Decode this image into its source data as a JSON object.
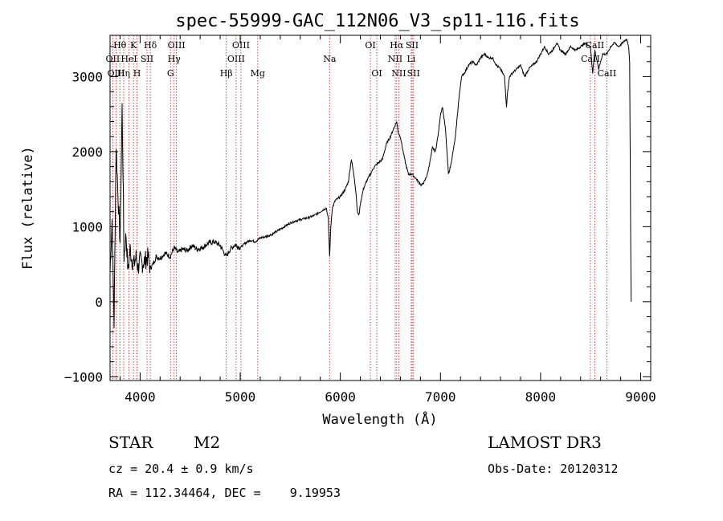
{
  "chart_data": {
    "type": "line",
    "title": "spec-55999-GAC_112N06_V3_sp11-116.fits",
    "xlabel": "Wavelength (Å)",
    "ylabel": "Flux (relative)",
    "xlim": [
      3700,
      9100
    ],
    "ylim": [
      -1050,
      3550
    ],
    "xticks": [
      4000,
      5000,
      6000,
      7000,
      8000,
      9000
    ],
    "yticks": [
      -1000,
      0,
      1000,
      2000,
      3000
    ],
    "series": [
      {
        "name": "spectrum",
        "x": [
          3700,
          3720,
          3740,
          3760,
          3780,
          3800,
          3820,
          3840,
          3860,
          3880,
          3900,
          3920,
          3940,
          3960,
          3980,
          4000,
          4020,
          4050,
          4080,
          4100,
          4130,
          4160,
          4200,
          4250,
          4300,
          4340,
          4380,
          4420,
          4470,
          4520,
          4570,
          4620,
          4680,
          4740,
          4800,
          4861,
          4900,
          4950,
          5000,
          5050,
          5100,
          5150,
          5200,
          5260,
          5320,
          5380,
          5440,
          5500,
          5560,
          5620,
          5680,
          5740,
          5800,
          5860,
          5880,
          5893,
          5905,
          5920,
          5950,
          6000,
          6050,
          6080,
          6110,
          6140,
          6160,
          6170,
          6185,
          6200,
          6230,
          6260,
          6300,
          6340,
          6380,
          6420,
          6460,
          6500,
          6530,
          6563,
          6580,
          6600,
          6620,
          6650,
          6680,
          6717,
          6750,
          6780,
          6810,
          6840,
          6870,
          6900,
          6920,
          6950,
          6980,
          7000,
          7020,
          7050,
          7080,
          7100,
          7120,
          7150,
          7180,
          7210,
          7240,
          7280,
          7320,
          7360,
          7400,
          7440,
          7480,
          7520,
          7560,
          7600,
          7640,
          7660,
          7670,
          7690,
          7720,
          7760,
          7800,
          7840,
          7880,
          7920,
          7960,
          8000,
          8040,
          8080,
          8120,
          8160,
          8200,
          8250,
          8300,
          8350,
          8400,
          8450,
          8498,
          8520,
          8542,
          8580,
          8620,
          8662,
          8700,
          8740,
          8780,
          8820,
          8860,
          8880,
          8890,
          8900,
          8905
        ],
        "values": [
          400,
          1100,
          -300,
          2100,
          1400,
          800,
          2600,
          600,
          900,
          400,
          700,
          550,
          500,
          600,
          450,
          550,
          500,
          550,
          600,
          450,
          500,
          600,
          580,
          650,
          600,
          720,
          650,
          700,
          680,
          750,
          700,
          720,
          780,
          800,
          750,
          600,
          700,
          760,
          720,
          780,
          820,
          800,
          850,
          870,
          900,
          950,
          1000,
          1050,
          1080,
          1100,
          1120,
          1150,
          1200,
          1250,
          1100,
          600,
          1000,
          1250,
          1350,
          1400,
          1500,
          1600,
          1900,
          1650,
          1400,
          1200,
          1150,
          1300,
          1500,
          1600,
          1700,
          1800,
          1850,
          1900,
          2100,
          2200,
          2300,
          2400,
          2250,
          2200,
          2050,
          1850,
          1700,
          1700,
          1650,
          1600,
          1550,
          1600,
          1700,
          1900,
          2050,
          2000,
          2250,
          2500,
          2600,
          2300,
          1700,
          1800,
          1950,
          2200,
          2650,
          3000,
          3050,
          3150,
          3200,
          3150,
          3250,
          3300,
          3250,
          3250,
          3150,
          3100,
          3000,
          2600,
          2800,
          3000,
          3050,
          3100,
          3150,
          3000,
          3100,
          3150,
          3200,
          3300,
          3400,
          3300,
          3350,
          3450,
          3350,
          3300,
          3400,
          3350,
          3400,
          3450,
          3400,
          3050,
          3350,
          3100,
          3300,
          3300,
          3400,
          3450,
          3400,
          3450,
          3500,
          3400,
          3200,
          800,
          0
        ]
      }
    ],
    "lines": [
      {
        "label": "Hθ",
        "wave": 3798,
        "row": 0
      },
      {
        "label": "OII",
        "wave": 3727,
        "row": 1
      },
      {
        "label": "OIII",
        "wave": 3760,
        "row": 2
      },
      {
        "label": "Hη",
        "wave": 3836,
        "row": 2
      },
      {
        "label": "K",
        "wave": 3934,
        "row": 0
      },
      {
        "label": "HeI",
        "wave": 3889,
        "row": 1
      },
      {
        "label": "H",
        "wave": 3969,
        "row": 2
      },
      {
        "label": "SII",
        "wave": 4069,
        "row": 1
      },
      {
        "label": "Hδ",
        "wave": 4102,
        "row": 0
      },
      {
        "label": "OIII",
        "wave": 4363,
        "row": 0
      },
      {
        "label": "Hγ",
        "wave": 4340,
        "row": 1
      },
      {
        "label": "G",
        "wave": 4304,
        "row": 2
      },
      {
        "label": "Hβ",
        "wave": 4861,
        "row": 2
      },
      {
        "label": "OIII",
        "wave": 5007,
        "row": 0
      },
      {
        "label": "OIII",
        "wave": 4959,
        "row": 1
      },
      {
        "label": "Mg",
        "wave": 5175,
        "row": 2
      },
      {
        "label": "Na",
        "wave": 5893,
        "row": 1
      },
      {
        "label": "OI",
        "wave": 6300,
        "row": 0
      },
      {
        "label": "OI",
        "wave": 6364,
        "row": 2
      },
      {
        "label": "Hα",
        "wave": 6563,
        "row": 0
      },
      {
        "label": "NII",
        "wave": 6548,
        "row": 1
      },
      {
        "label": "NII",
        "wave": 6584,
        "row": 2
      },
      {
        "label": "SII",
        "wave": 6717,
        "row": 0
      },
      {
        "label": "Li",
        "wave": 6708,
        "row": 1
      },
      {
        "label": "SII",
        "wave": 6731,
        "row": 2
      },
      {
        "label": "CaII",
        "wave": 8542,
        "row": 0
      },
      {
        "label": "CaII",
        "wave": 8498,
        "row": 1
      },
      {
        "label": "CaII",
        "wave": 8662,
        "row": 2
      }
    ]
  },
  "info": {
    "object_class": "STAR",
    "subclass": "M2",
    "survey": "LAMOST DR3",
    "cz": "cz = 20.4 ± 0.9 km/s",
    "obs_date": "Obs-Date: 20120312",
    "radec": "RA = 112.34464, DEC =    9.19953"
  },
  "colors": {
    "line_marker": "#b22222",
    "spectrum": "#000000",
    "axis": "#000000"
  }
}
